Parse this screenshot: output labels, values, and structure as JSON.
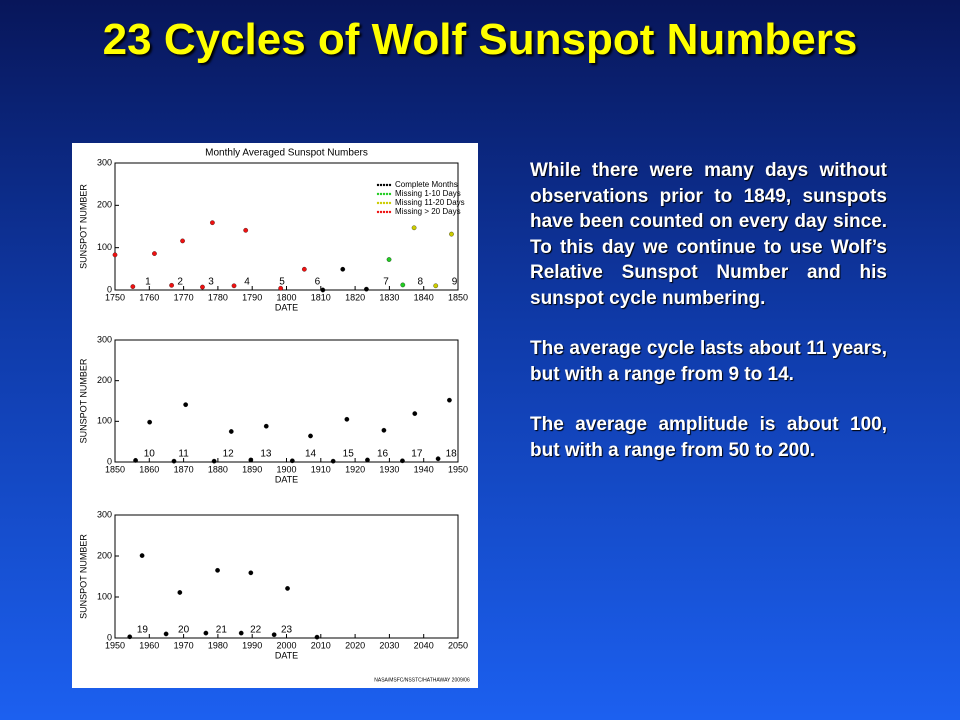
{
  "title": "23 Cycles of Wolf Sunspot Numbers",
  "paragraphs": [
    "While there were many days without observations prior to 1849, sunspots have been counted on every day since. To this day we continue to use Wolf’s Relative Sunspot Number and his sunspot cycle numbering.",
    "The average cycle lasts about 11 years, but with a range from 9 to 14.",
    "The average amplitude is about 100, but with a range from 50 to 200."
  ],
  "credit": "NASA/MSFC/NSSTC/HATHAWAY 2009/06",
  "chart_data": [
    {
      "type": "scatter",
      "title": "Monthly Averaged Sunspot Numbers",
      "xlabel": "DATE",
      "ylabel": "SUNSPOT NUMBER",
      "xlim": [
        1750,
        1850
      ],
      "ylim": [
        0,
        300
      ],
      "xticks": [
        1750,
        1760,
        1770,
        1780,
        1790,
        1800,
        1810,
        1820,
        1830,
        1840,
        1850
      ],
      "yticks": [
        0,
        100,
        200,
        300
      ],
      "legend": "upper right",
      "series": [
        {
          "name": "Complete Months",
          "color": "#000000",
          "x": [
            1810.6,
            1816.4,
            1823.3
          ],
          "values": [
            0,
            49,
            2
          ]
        },
        {
          "name": "Missing 1-10 Days",
          "color": "#22cc22",
          "x": [
            1829.9,
            1833.9
          ],
          "values": [
            72,
            12
          ]
        },
        {
          "name": "Missing 11-20 Days",
          "color": "#cccc00",
          "x": [
            1837.2,
            1843.5,
            1848.1
          ],
          "values": [
            147,
            10,
            132
          ]
        },
        {
          "name": "Missing > 20 Days",
          "color": "#ee1111",
          "x": [
            1750,
            1755.2,
            1761.5,
            1766.5,
            1769.7,
            1775.5,
            1778.4,
            1784.7,
            1788.1,
            1798.3,
            1805.2
          ],
          "values": [
            83,
            8,
            86,
            11,
            116,
            7,
            159,
            10,
            141,
            4,
            49
          ]
        }
      ],
      "cycles": {
        "x": [
          1759.6,
          1769,
          1778,
          1788.5,
          1798.7,
          1809,
          1829,
          1839,
          1849
        ],
        "labels": [
          "1",
          "2",
          "3",
          "4",
          "5",
          "6",
          "7",
          "8",
          "9"
        ]
      }
    },
    {
      "type": "scatter",
      "xlabel": "DATE",
      "ylabel": "SUNSPOT NUMBER",
      "xlim": [
        1850,
        1950
      ],
      "ylim": [
        0,
        300
      ],
      "xticks": [
        1850,
        1860,
        1870,
        1880,
        1890,
        1900,
        1910,
        1920,
        1930,
        1940,
        1950
      ],
      "yticks": [
        0,
        100,
        200,
        300
      ],
      "series": [
        {
          "color": "#000000",
          "x": [
            1856.0,
            1860.1,
            1867.2,
            1870.6,
            1878.9,
            1883.9,
            1889.6,
            1894.1,
            1901.7,
            1907.0,
            1913.6,
            1917.6,
            1923.6,
            1928.4,
            1933.8,
            1937.4,
            1944.2,
            1947.5
          ],
          "values": [
            4,
            98,
            2,
            141,
            2,
            75,
            5,
            88,
            3,
            64,
            2,
            105,
            5,
            78,
            3,
            119,
            8,
            152
          ]
        }
      ],
      "cycles": {
        "x": [
          1860,
          1870,
          1883,
          1894,
          1907,
          1918,
          1928,
          1938,
          1948
        ],
        "labels": [
          "10",
          "11",
          "12",
          "13",
          "14",
          "15",
          "16",
          "17",
          "18"
        ]
      }
    },
    {
      "type": "scatter",
      "xlabel": "DATE",
      "ylabel": "SUNSPOT NUMBER",
      "xlim": [
        1950,
        2050
      ],
      "ylim": [
        0,
        300
      ],
      "xticks": [
        1950,
        1960,
        1970,
        1980,
        1990,
        2000,
        2010,
        2020,
        2030,
        2040,
        2050
      ],
      "yticks": [
        0,
        100,
        200,
        300
      ],
      "series": [
        {
          "color": "#000000",
          "x": [
            1954.3,
            1957.9,
            1964.9,
            1968.9,
            1976.5,
            1979.9,
            1986.8,
            1989.6,
            1996.4,
            2000.3,
            2008.9
          ],
          "values": [
            3,
            201,
            10,
            111,
            12,
            165,
            12,
            159,
            8,
            121,
            2
          ]
        }
      ],
      "cycles": {
        "x": [
          1958,
          1970,
          1981,
          1991,
          2000
        ],
        "labels": [
          "19",
          "20",
          "21",
          "22",
          "23"
        ]
      }
    }
  ]
}
